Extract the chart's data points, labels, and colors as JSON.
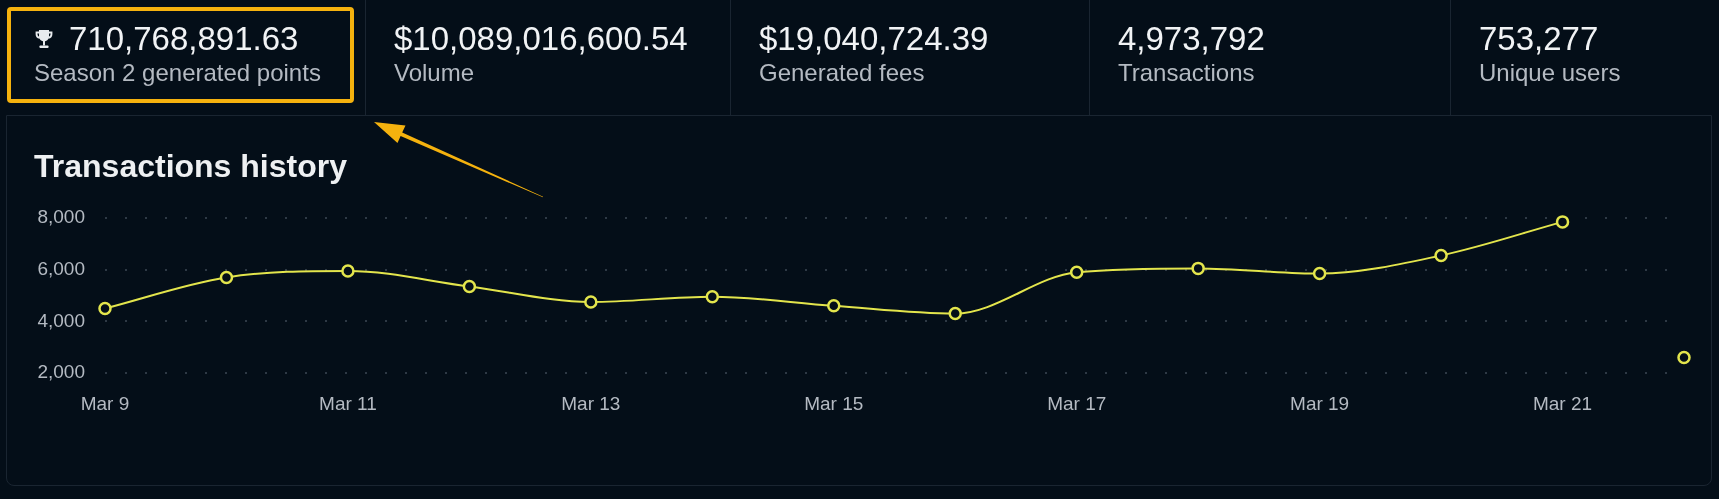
{
  "chart_data": [
    {
      "type": "other",
      "title": "710,768,891.63",
      "subtitle": "Season 2 generated points"
    },
    {
      "type": "other",
      "title": "$10,089,016,600.54",
      "subtitle": "Volume"
    },
    {
      "type": "other",
      "title": "$19,040,724.39",
      "subtitle": "Generated fees"
    },
    {
      "type": "other",
      "title": "4,973,792",
      "subtitle": "Transactions"
    },
    {
      "type": "other",
      "title": "753,277",
      "subtitle": "Unique users"
    },
    {
      "type": "line",
      "title": "Transactions history",
      "categories": [
        "Mar 9",
        null,
        "Mar 11",
        null,
        "Mar 13",
        null,
        "Mar 15",
        null,
        "Mar 17",
        null,
        "Mar 19",
        null,
        "Mar 21",
        null
      ],
      "series": [
        {
          "type": "line",
          "color": "#e3e54c",
          "values": [
            4500,
            5700,
            5950,
            5350,
            4750,
            4950,
            4600,
            4300,
            5900,
            6050,
            5850,
            6550,
            7850,
            null
          ]
        },
        {
          "type": "scatter",
          "color": "#e3e54c",
          "values": [
            null,
            null,
            null,
            null,
            null,
            null,
            null,
            null,
            null,
            null,
            null,
            null,
            null,
            2600
          ]
        }
      ],
      "ylim": [
        2000,
        8000
      ],
      "yticks": [
        {
          "value": 2000,
          "label": "2,000"
        },
        {
          "value": 4000,
          "label": "4,000"
        },
        {
          "value": 6000,
          "label": "6,000"
        },
        {
          "value": 8000,
          "label": "8,000"
        }
      ],
      "grid": "y",
      "marker": "circle",
      "line_style": "solid"
    }
  ]
}
